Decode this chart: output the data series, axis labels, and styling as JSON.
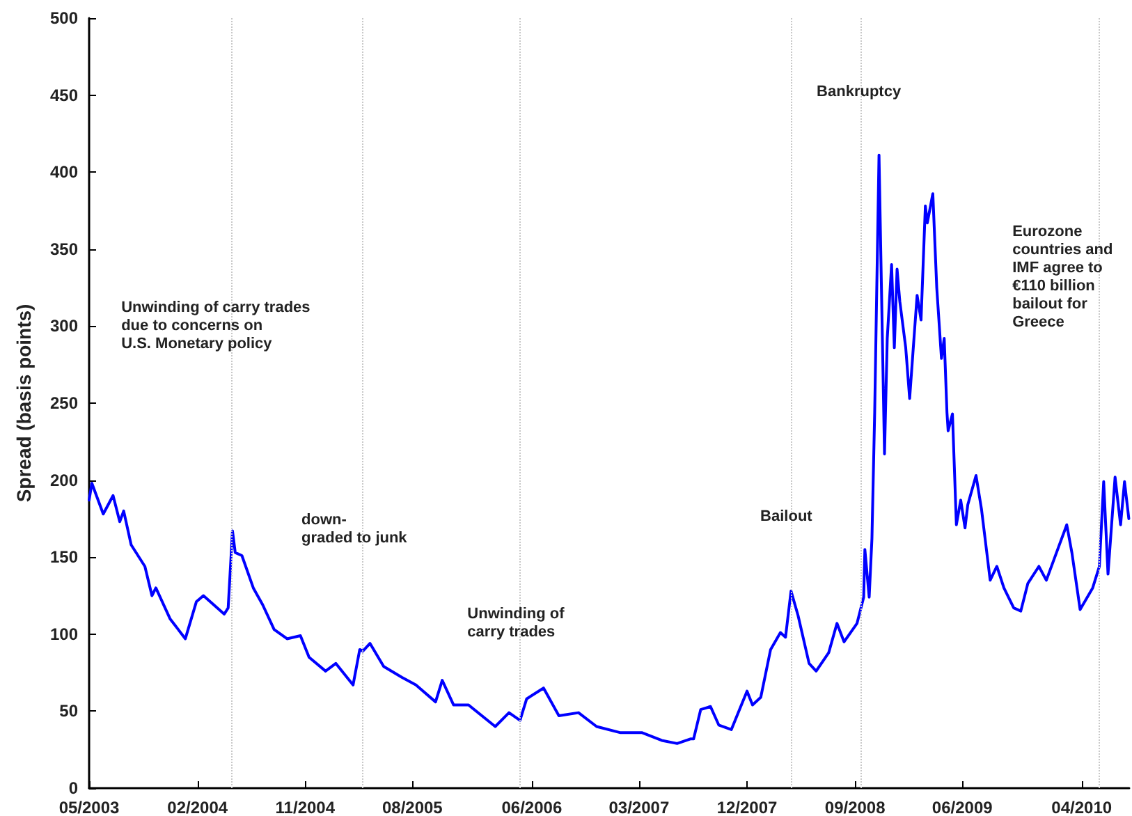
{
  "chart_data": {
    "type": "line",
    "ylabel": "Spread (basis points)",
    "x": [
      "2003-05-01",
      "2003-05-08",
      "2003-06-06",
      "2003-07-01",
      "2003-07-18",
      "2003-07-28",
      "2003-08-16",
      "2003-09-20",
      "2003-10-08",
      "2003-10-18",
      "2003-11-23",
      "2004-01-01",
      "2004-01-29",
      "2004-02-16",
      "2004-04-09",
      "2004-04-19",
      "2004-04-30",
      "2004-05-07",
      "2004-05-24",
      "2004-06-22",
      "2004-07-16",
      "2004-08-14",
      "2004-09-16",
      "2004-10-20",
      "2004-11-11",
      "2004-12-23",
      "2005-01-18",
      "2005-03-03",
      "2005-03-20",
      "2005-03-28",
      "2005-04-15",
      "2005-05-20",
      "2005-07-05",
      "2005-08-10",
      "2005-09-29",
      "2005-10-16",
      "2005-11-14",
      "2005-12-22",
      "2006-02-28",
      "2006-04-04",
      "2006-05-02",
      "2006-05-19",
      "2006-07-01",
      "2006-08-09",
      "2006-09-28",
      "2006-11-13",
      "2007-01-13",
      "2007-03-09",
      "2007-04-28",
      "2007-06-06",
      "2007-07-11",
      "2007-07-18",
      "2007-08-05",
      "2007-08-30",
      "2007-09-20",
      "2007-10-22",
      "2007-12-01",
      "2007-12-15",
      "2008-01-05",
      "2008-01-30",
      "2008-02-24",
      "2008-03-08",
      "2008-03-22",
      "2008-04-09",
      "2008-05-07",
      "2008-05-25",
      "2008-06-26",
      "2008-07-17",
      "2008-08-04",
      "2008-09-06",
      "2008-09-23",
      "2008-09-26",
      "2008-10-07",
      "2008-10-14",
      "2008-10-21",
      "2008-11-01",
      "2008-11-15",
      "2008-11-22",
      "2008-12-03",
      "2008-12-10",
      "2008-12-17",
      "2008-12-24",
      "2009-01-08",
      "2009-01-18",
      "2009-01-29",
      "2009-02-06",
      "2009-02-16",
      "2009-02-27",
      "2009-03-04",
      "2009-03-18",
      "2009-03-28",
      "2009-04-09",
      "2009-04-16",
      "2009-04-23",
      "2009-04-26",
      "2009-05-07",
      "2009-05-17",
      "2009-05-28",
      "2009-06-08",
      "2009-06-15",
      "2009-07-06",
      "2009-07-20",
      "2009-08-11",
      "2009-08-28",
      "2009-09-15",
      "2009-10-10",
      "2009-10-28",
      "2009-11-15",
      "2009-12-13",
      "2010-01-01",
      "2010-02-22",
      "2010-03-07",
      "2010-03-28",
      "2010-04-29",
      "2010-05-16",
      "2010-05-27",
      "2010-06-07",
      "2010-06-25",
      "2010-07-09",
      "2010-07-19",
      "2010-07-30"
    ],
    "series": [
      {
        "color": "#0000ff",
        "values": [
          187,
          198,
          178,
          190,
          173,
          180,
          158,
          144,
          125,
          130,
          110,
          97,
          121,
          125,
          113,
          117,
          167,
          153,
          151,
          130,
          119,
          103,
          97,
          99,
          85,
          76,
          81,
          67,
          90,
          89,
          94,
          79,
          72,
          67,
          56,
          70,
          54,
          54,
          40,
          49,
          44,
          58,
          65,
          47,
          49,
          40,
          36,
          36,
          31,
          29,
          32,
          32,
          51,
          53,
          41,
          38,
          63,
          54,
          59,
          90,
          101,
          98,
          128,
          112,
          81,
          76,
          88,
          107,
          95,
          107,
          124,
          155,
          124,
          162,
          244,
          411,
          217,
          292,
          340,
          286,
          337,
          316,
          286,
          253,
          292,
          320,
          304,
          378,
          367,
          386,
          325,
          279,
          292,
          244,
          232,
          243,
          171,
          187,
          169,
          184,
          203,
          181,
          135,
          144,
          130,
          117,
          115,
          133,
          144,
          135,
          171,
          153,
          116,
          130,
          144,
          199,
          139,
          202,
          171,
          199,
          175
        ]
      }
    ],
    "xlim": [
      "2003-05-01",
      "2010-07-31"
    ],
    "xticks": [
      {
        "value": "2003-05-01",
        "label": "05/2003"
      },
      {
        "value": "2004-02-01",
        "label": "02/2004"
      },
      {
        "value": "2004-11-01",
        "label": "11/2004"
      },
      {
        "value": "2005-08-01",
        "label": "08/2005"
      },
      {
        "value": "2006-06-01",
        "label": "06/2006"
      },
      {
        "value": "2007-03-01",
        "label": "03/2007"
      },
      {
        "value": "2007-12-01",
        "label": "12/2007"
      },
      {
        "value": "2008-09-01",
        "label": "09/2008"
      },
      {
        "value": "2009-06-01",
        "label": "06/2009"
      },
      {
        "value": "2010-04-01",
        "label": "04/2010"
      }
    ],
    "ylim": [
      0,
      500
    ],
    "yticks": [
      0,
      50,
      100,
      150,
      200,
      250,
      300,
      350,
      400,
      450,
      500
    ],
    "grid": false,
    "marker": "none",
    "line_style": "solid",
    "ref_lines": [
      {
        "axis": "x",
        "value": "2004-04-26",
        "color": "#c8c8c8",
        "line_style": "dotted"
      },
      {
        "axis": "x",
        "value": "2005-03-28",
        "color": "#c8c8c8",
        "line_style": "dotted"
      },
      {
        "axis": "x",
        "value": "2006-05-02",
        "color": "#c8c8c8",
        "line_style": "dotted"
      },
      {
        "axis": "x",
        "value": "2008-03-22",
        "color": "#c8c8c8",
        "line_style": "dotted"
      },
      {
        "axis": "x",
        "value": "2008-09-15",
        "color": "#c8c8c8",
        "line_style": "dotted"
      },
      {
        "axis": "x",
        "value": "2010-05-16",
        "color": "#c8c8c8",
        "line_style": "dotted"
      }
    ],
    "annotations": [
      {
        "text": "Unwinding of carry trades\ndue to concerns on\nU.S. Monetary policy",
        "x": "2004-04-26",
        "y": 318
      },
      {
        "text": "down-\ngraded to junk",
        "x": "2005-03-28",
        "y": 180
      },
      {
        "text": "Unwinding of\ncarry trades",
        "x": "2006-05-02",
        "y": 119
      },
      {
        "text": "Bailout",
        "x": "2008-03-22",
        "y": 182
      },
      {
        "text": "Bankruptcy",
        "x": "2008-09-15",
        "y": 458
      },
      {
        "text": "Eurozone\ncountries and\nIMF agree to\n€110 billion\nbailout for\nGreece",
        "x": "2010-05-16",
        "y": 367
      }
    ]
  }
}
